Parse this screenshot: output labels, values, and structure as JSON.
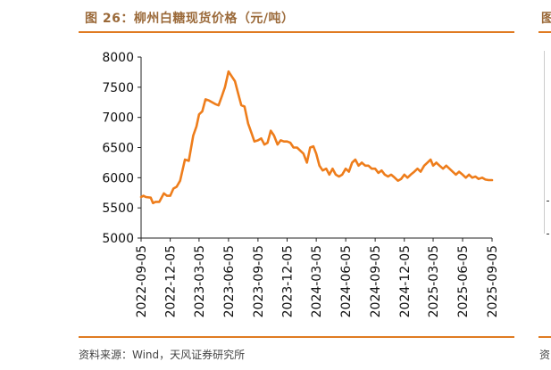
{
  "figure": {
    "title": "图 26：柳州白糖现货价格（元/吨）",
    "source": "资料来源：Wind，天风证券研究所"
  },
  "colors": {
    "accent": "#e07b22",
    "title": "#9b6a3a",
    "line": "#ee7d1b"
  },
  "clipped_neighbor": {
    "title_char": "图",
    "source_char": "资"
  },
  "chart_data": {
    "type": "line",
    "title": "柳州白糖现货价格（元/吨）",
    "xlabel": "",
    "ylabel": "",
    "ylim": [
      5000,
      8000
    ],
    "yticks": [
      "5000",
      "5500",
      "6000",
      "6500",
      "7000",
      "7500",
      "8000"
    ],
    "xlim": [
      "2022-09-05",
      "2025-09-05"
    ],
    "xticks": [
      "2022-09-05",
      "2022-12-05",
      "2023-03-05",
      "2023-06-05",
      "2023-09-05",
      "2023-12-05",
      "2024-03-05",
      "2024-06-05",
      "2024-09-05",
      "2024-12-05",
      "2025-03-05",
      "2025-06-05",
      "2025-09-05"
    ],
    "grid": false,
    "legend": "none",
    "series": [
      {
        "x": [
          "2022-09-05",
          "2022-09-12",
          "2022-09-20",
          "2022-10-05",
          "2022-10-12",
          "2022-10-20",
          "2022-11-01",
          "2022-11-15",
          "2022-11-25",
          "2022-12-05",
          "2022-12-15",
          "2022-12-25",
          "2023-01-05",
          "2023-01-20",
          "2023-02-01",
          "2023-02-15",
          "2023-02-25",
          "2023-03-05",
          "2023-03-15",
          "2023-03-25",
          "2023-04-05",
          "2023-04-15",
          "2023-04-25",
          "2023-05-05",
          "2023-05-15",
          "2023-05-25",
          "2023-06-05",
          "2023-06-15",
          "2023-06-25",
          "2023-07-05",
          "2023-07-15",
          "2023-07-25",
          "2023-08-05",
          "2023-08-15",
          "2023-08-25",
          "2023-09-05",
          "2023-09-15",
          "2023-09-25",
          "2023-10-05",
          "2023-10-15",
          "2023-10-25",
          "2023-11-05",
          "2023-11-15",
          "2023-11-25",
          "2023-12-05",
          "2023-12-15",
          "2023-12-25",
          "2024-01-05",
          "2024-01-15",
          "2024-01-25",
          "2024-02-05",
          "2024-02-15",
          "2024-02-25",
          "2024-03-05",
          "2024-03-15",
          "2024-03-25",
          "2024-04-05",
          "2024-04-15",
          "2024-04-25",
          "2024-05-05",
          "2024-05-15",
          "2024-05-25",
          "2024-06-05",
          "2024-06-15",
          "2024-06-25",
          "2024-07-05",
          "2024-07-15",
          "2024-07-25",
          "2024-08-05",
          "2024-08-15",
          "2024-08-25",
          "2024-09-05",
          "2024-09-15",
          "2024-09-25",
          "2024-10-05",
          "2024-10-15",
          "2024-10-25",
          "2024-11-05",
          "2024-11-15",
          "2024-11-25",
          "2024-12-05",
          "2024-12-15",
          "2024-12-25",
          "2025-01-05",
          "2025-01-15",
          "2025-01-25",
          "2025-02-05",
          "2025-02-15",
          "2025-02-25",
          "2025-03-05",
          "2025-03-15",
          "2025-03-25",
          "2025-04-05",
          "2025-04-15",
          "2025-04-25",
          "2025-05-05",
          "2025-05-15",
          "2025-05-25",
          "2025-06-05",
          "2025-06-15",
          "2025-06-25",
          "2025-07-05",
          "2025-07-15",
          "2025-07-25",
          "2025-08-05",
          "2025-08-15",
          "2025-08-25",
          "2025-09-05"
        ],
        "y": [
          5680,
          5700,
          5680,
          5670,
          5580,
          5600,
          5600,
          5740,
          5700,
          5700,
          5820,
          5850,
          5950,
          6300,
          6280,
          6700,
          6850,
          7050,
          7100,
          7300,
          7280,
          7250,
          7220,
          7200,
          7350,
          7500,
          7760,
          7680,
          7600,
          7400,
          7200,
          7180,
          6900,
          6750,
          6600,
          6620,
          6650,
          6550,
          6580,
          6780,
          6700,
          6550,
          6620,
          6600,
          6600,
          6580,
          6500,
          6500,
          6450,
          6400,
          6250,
          6500,
          6520,
          6400,
          6200,
          6120,
          6150,
          6050,
          6150,
          6050,
          6020,
          6050,
          6150,
          6100,
          6250,
          6300,
          6200,
          6250,
          6200,
          6200,
          6150,
          6150,
          6080,
          6120,
          6050,
          6020,
          6050,
          6000,
          5950,
          5980,
          6050,
          6000,
          6050,
          6100,
          6150,
          6100,
          6200,
          6250,
          6300,
          6200,
          6250,
          6200,
          6150,
          6200,
          6150,
          6100,
          6050,
          6100,
          6050,
          6000,
          6050,
          6000,
          6020,
          5980,
          6000,
          5970,
          5960,
          5960
        ],
        "values_note": ""
      }
    ]
  }
}
